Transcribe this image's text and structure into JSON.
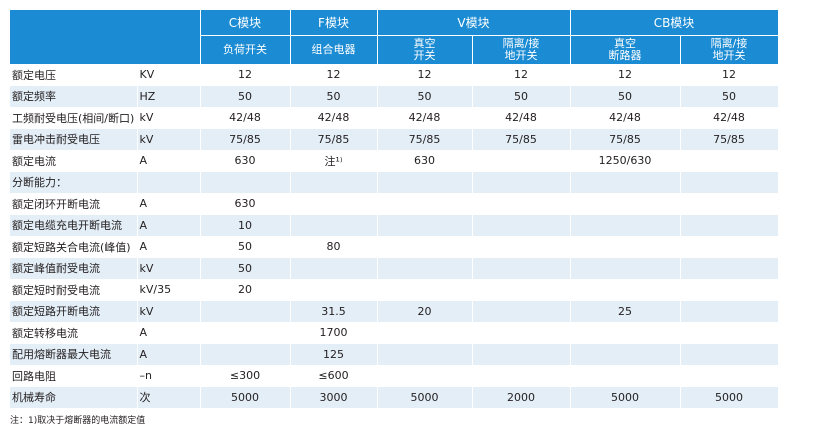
{
  "table": {
    "header": {
      "groups": [
        "C模块",
        "F模块",
        "V模块",
        "CB模块"
      ],
      "sub": [
        [
          "负荷开关"
        ],
        [
          "组合电器"
        ],
        [
          "真空",
          "开关"
        ],
        [
          "隔离/接",
          "地开关"
        ],
        [
          "真空",
          "断路器"
        ],
        [
          "隔离/接",
          "地开关"
        ]
      ]
    },
    "rows": [
      [
        "额定电压",
        "KV",
        "12",
        "12",
        "12",
        "12",
        "12",
        "12"
      ],
      [
        "额定频率",
        "HZ",
        "50",
        "50",
        "50",
        "50",
        "50",
        "50"
      ],
      [
        "工频耐受电压(相间/断口)",
        "kV",
        "42/48",
        "42/48",
        "42/48",
        "42/48",
        "42/48",
        "42/48"
      ],
      [
        "雷电冲击耐受电压",
        "kV",
        "75/85",
        "75/85",
        "75/85",
        "75/85",
        "75/85",
        "75/85"
      ],
      [
        "额定电流",
        "A",
        "630",
        "注¹⁾",
        "630",
        null,
        "1250/630",
        null
      ],
      [
        "分断能力：",
        null,
        null,
        null,
        null,
        null,
        null,
        null
      ],
      [
        "额定闭环开断电流",
        "A",
        "630",
        null,
        null,
        null,
        null,
        null
      ],
      [
        "额定电缆充电开断电流",
        "A",
        "10",
        null,
        null,
        null,
        null,
        null
      ],
      [
        "额定短路关合电流(峰值)",
        "A",
        "50",
        "80",
        null,
        null,
        null,
        null
      ],
      [
        "额定峰值耐受电流",
        "kV",
        "50",
        null,
        null,
        null,
        null,
        null
      ],
      [
        "额定短时耐受电流",
        "kV/35",
        "20",
        null,
        null,
        null,
        null,
        null
      ],
      [
        "额定短路开断电流",
        "kV",
        null,
        "31.5",
        "20",
        null,
        "25",
        null
      ],
      [
        "额定转移电流",
        "A",
        null,
        "1700",
        null,
        null,
        null,
        null
      ],
      [
        "配用熔断器最大电流",
        "A",
        null,
        "125",
        null,
        null,
        null,
        null
      ],
      [
        "回路电阻",
        "–n",
        "≤300",
        "≤600",
        null,
        null,
        null,
        null
      ],
      [
        "机械寿命",
        "次",
        "5000",
        "3000",
        "5000",
        "2000",
        "5000",
        "5000"
      ]
    ]
  },
  "footnote": "注：1)取决于熔断器的电流额定值"
}
